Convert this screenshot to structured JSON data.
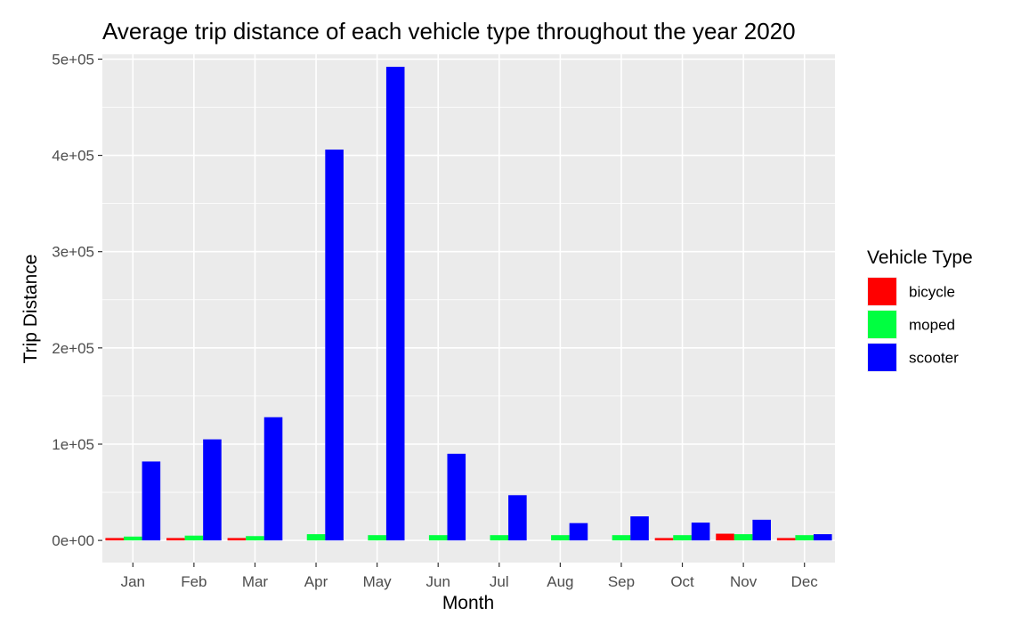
{
  "chart_data": {
    "type": "bar",
    "title": "Average trip distance of each vehicle type throughout the year 2020",
    "xlabel": "Month",
    "ylabel": "Trip Distance",
    "ylim": [
      -23000,
      505000
    ],
    "yticks": [
      0,
      100000,
      200000,
      300000,
      400000,
      500000
    ],
    "ytick_labels": [
      "0e+00",
      "1e+05",
      "2e+05",
      "3e+05",
      "4e+05",
      "5e+05"
    ],
    "grid": true,
    "legend": {
      "title": "Vehicle Type",
      "position": "right"
    },
    "categories": [
      "Jan",
      "Feb",
      "Mar",
      "Apr",
      "May",
      "Jun",
      "Jul",
      "Aug",
      "Sep",
      "Oct",
      "Nov",
      "Dec"
    ],
    "series": [
      {
        "name": "bicycle",
        "color": "#ff0000",
        "values": [
          2500,
          2500,
          2500,
          null,
          null,
          null,
          null,
          null,
          null,
          2500,
          7000,
          2500
        ]
      },
      {
        "name": "moped",
        "color": "#00ff40",
        "values": [
          4000,
          5000,
          4500,
          6500,
          5500,
          5500,
          5500,
          5500,
          5500,
          5500,
          6500,
          5500
        ]
      },
      {
        "name": "scooter",
        "color": "#0000ff",
        "values": [
          82000,
          105000,
          128000,
          406000,
          492000,
          90000,
          47000,
          18000,
          25000,
          18500,
          21500,
          6500
        ]
      }
    ]
  }
}
